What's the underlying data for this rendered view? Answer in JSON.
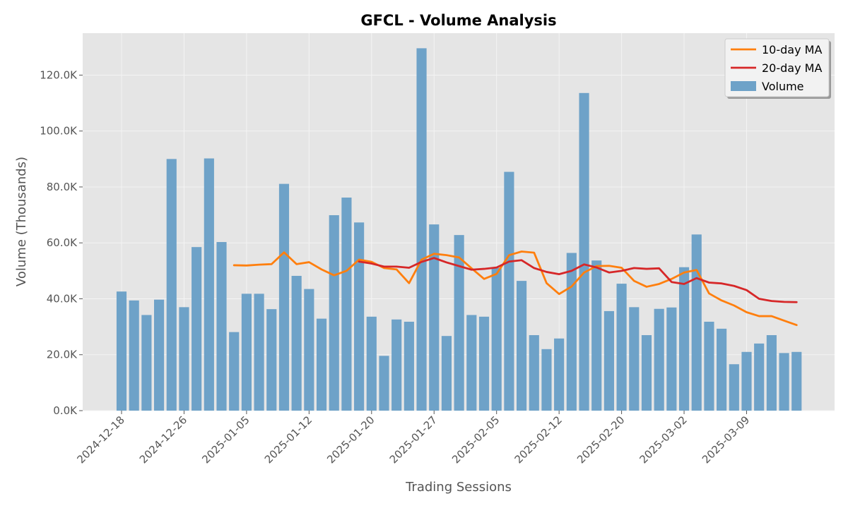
{
  "chart_data": {
    "type": "bar",
    "title": "GFCL - Volume Analysis",
    "xlabel": "Trading Sessions",
    "ylabel": "Volume (Thousands)",
    "ylim": [
      0,
      135
    ],
    "y_ticks": [
      0,
      20,
      40,
      60,
      80,
      100,
      120
    ],
    "y_tick_labels": [
      "0.0K",
      "20.0K",
      "40.0K",
      "60.0K",
      "80.0K",
      "100.0K",
      "120.0K"
    ],
    "x_tick_labels": [
      "2024-12-18",
      "2024-12-26",
      "2025-01-05",
      "2025-01-12",
      "2025-01-20",
      "2025-01-27",
      "2025-02-05",
      "2025-02-12",
      "2025-02-20",
      "2025-03-02",
      "2025-03-09"
    ],
    "x_tick_positions": [
      0,
      5,
      10,
      15,
      20,
      25,
      30,
      35,
      40,
      45,
      50
    ],
    "grid": true,
    "legend_position": "top-right",
    "colors": {
      "volume": "#6ea2c8",
      "ma10": "#ff7f0e",
      "ma20": "#d62728",
      "plot_bg": "#e5e5e5",
      "grid": "#f4f4f4"
    },
    "legend": [
      {
        "name": "10-day MA",
        "kind": "line",
        "color": "#ff7f0e"
      },
      {
        "name": "20-day MA",
        "kind": "line",
        "color": "#d62728"
      },
      {
        "name": "Volume",
        "kind": "bar",
        "color": "#6ea2c8"
      }
    ],
    "series": [
      {
        "name": "Volume",
        "kind": "bar",
        "values": [
          42.6,
          39.4,
          34.2,
          39.7,
          90.0,
          37.0,
          58.5,
          90.2,
          60.3,
          28.1,
          41.8,
          41.8,
          36.3,
          81.1,
          48.2,
          43.5,
          32.9,
          69.9,
          76.2,
          67.3,
          33.6,
          19.6,
          32.6,
          31.8,
          129.6,
          66.6,
          26.7,
          62.8,
          34.2,
          33.6,
          51.1,
          85.4,
          46.4,
          27.0,
          22.0,
          25.8,
          56.4,
          113.6,
          53.7,
          35.6,
          45.4,
          37.0,
          27.0,
          36.4,
          36.9,
          51.3,
          63.0,
          31.8,
          29.3,
          16.6,
          21.0,
          24.0,
          27.0,
          20.6,
          21.0
        ]
      },
      {
        "name": "10-day MA",
        "kind": "line",
        "start_index": 9,
        "values": [
          52.0,
          51.9,
          52.2,
          52.4,
          56.6,
          52.4,
          53.1,
          50.5,
          48.4,
          50.0,
          54.0,
          53.2,
          51.0,
          50.5,
          45.6,
          54.0,
          56.1,
          55.6,
          54.8,
          50.9,
          47.1,
          48.9,
          55.6,
          56.9,
          56.5,
          45.6,
          41.7,
          44.4,
          49.4,
          51.7,
          51.8,
          51.1,
          46.4,
          44.3,
          45.3,
          47.1,
          49.4,
          50.3,
          41.9,
          39.4,
          37.6,
          35.2,
          33.8,
          33.8,
          32.2,
          30.6
        ]
      },
      {
        "name": "20-day MA",
        "kind": "line",
        "start_index": 19,
        "values": [
          53.3,
          52.6,
          51.5,
          51.5,
          51.1,
          53.2,
          54.6,
          53.0,
          51.7,
          50.4,
          50.7,
          51.2,
          53.3,
          53.8,
          51.0,
          49.6,
          48.8,
          50.0,
          52.3,
          51.2,
          49.4,
          50.0,
          51.0,
          50.7,
          50.9,
          46.0,
          45.3,
          47.4,
          45.8,
          45.5,
          44.6,
          43.1,
          40.0,
          39.2,
          38.9,
          38.8
        ]
      }
    ]
  }
}
